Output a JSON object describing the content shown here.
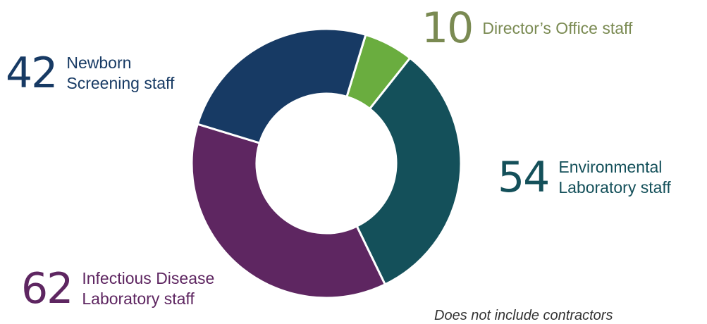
{
  "chart_data": {
    "type": "pie",
    "variant": "donut",
    "series": [
      {
        "name": "Director’s Office staff",
        "value": 10,
        "color": "#6aad3f",
        "number": "10",
        "label_lines": [
          "Director’s Office staff"
        ]
      },
      {
        "name": "Environmental Laboratory staff",
        "value": 54,
        "color": "#14505a",
        "number": "54",
        "label_lines": [
          "Environmental",
          "Laboratory staff"
        ]
      },
      {
        "name": "Infectious Disease Laboratory staff",
        "value": 62,
        "color": "#5e2661",
        "number": "62",
        "label_lines": [
          "Infectious Disease",
          "Laboratory staff"
        ]
      },
      {
        "name": "Newborn Screening staff",
        "value": 42,
        "color": "#173a64",
        "number": "42",
        "label_lines": [
          "Newborn",
          "Screening staff"
        ]
      }
    ],
    "label_colors": {
      "Director’s Office staff": "#7a8a52",
      "Environmental Laboratory staff": "#14505a",
      "Infectious Disease Laboratory staff": "#5e2661",
      "Newborn Screening staff": "#173a64"
    }
  },
  "footnote": "Does not include contractors"
}
